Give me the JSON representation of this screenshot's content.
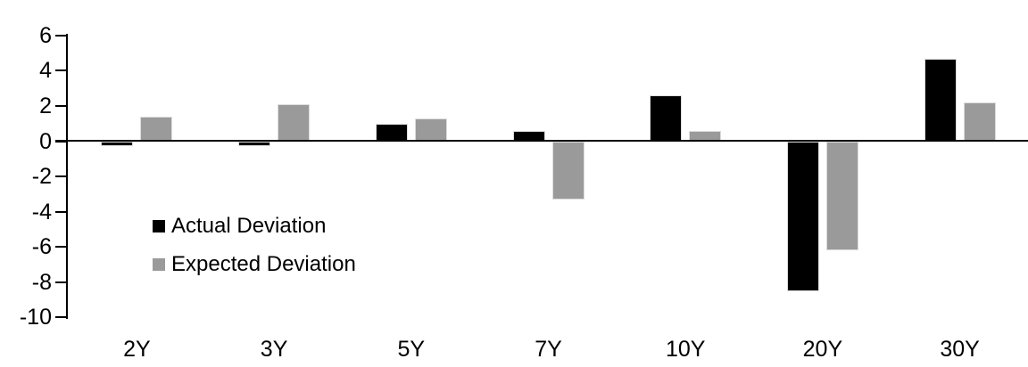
{
  "chart_data": {
    "type": "bar",
    "categories": [
      "2Y",
      "3Y",
      "5Y",
      "7Y",
      "10Y",
      "20Y",
      "30Y"
    ],
    "series": [
      {
        "name": "Actual Deviation",
        "color": "#000000",
        "values": [
          -0.3,
          -0.3,
          1.0,
          0.6,
          2.6,
          -8.5,
          4.7
        ]
      },
      {
        "name": "Expected Deviation",
        "color": "#9a9a9a",
        "values": [
          1.4,
          2.1,
          1.3,
          -3.3,
          0.6,
          -6.2,
          2.2
        ]
      }
    ],
    "title": "",
    "xlabel": "",
    "ylabel": "",
    "ylim": [
      -10,
      6
    ],
    "ytick_step": 2,
    "ytick_labels": [
      "6",
      "4",
      "2",
      "0",
      "-2",
      "-4",
      "-6",
      "-8",
      "-10"
    ],
    "grid": false,
    "legend_position": "inside-left-middle",
    "axis_color": "#000000",
    "background": "#ffffff"
  }
}
